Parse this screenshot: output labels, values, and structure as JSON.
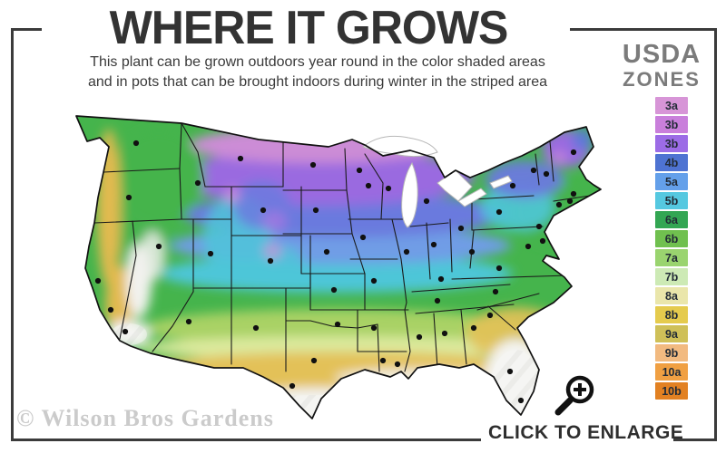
{
  "title": "WHERE IT GROWS",
  "subtitle": {
    "line1": "This plant can be grown outdoors year round in the color shaded areas",
    "line2": "and in pots that can be brought indoors during winter in the striped area"
  },
  "legend": {
    "heading_line1": "USDA",
    "heading_line2": "ZONES",
    "zones": [
      {
        "label": "3a",
        "color": "#d795d7"
      },
      {
        "label": "3b",
        "color": "#c97fdb"
      },
      {
        "label": "3b",
        "color": "#9c6ce6"
      },
      {
        "label": "4b",
        "color": "#4e73d2"
      },
      {
        "label": "5a",
        "color": "#64a0ea"
      },
      {
        "label": "5b",
        "color": "#55c8e0"
      },
      {
        "label": "6a",
        "color": "#33a653"
      },
      {
        "label": "6b",
        "color": "#70c04f"
      },
      {
        "label": "7a",
        "color": "#9ad46f"
      },
      {
        "label": "7b",
        "color": "#cdeab5"
      },
      {
        "label": "8a",
        "color": "#eae6ab"
      },
      {
        "label": "8b",
        "color": "#e5cb4d"
      },
      {
        "label": "9a",
        "color": "#cfc058"
      },
      {
        "label": "9b",
        "color": "#f2ba80"
      },
      {
        "label": "10a",
        "color": "#f0a043"
      },
      {
        "label": "10b",
        "color": "#e28122"
      }
    ]
  },
  "watermark": "© Wilson Bros Gardens",
  "enlarge_label": "CLICK TO ENLARGE",
  "map": {
    "marker_color": "#111111",
    "markers": [
      [
        100,
        48
      ],
      [
        92,
        108
      ],
      [
        58,
        200
      ],
      [
        72,
        232
      ],
      [
        88,
        256
      ],
      [
        125,
        162
      ],
      [
        168,
        92
      ],
      [
        215,
        65
      ],
      [
        240,
        122
      ],
      [
        182,
        170
      ],
      [
        248,
        178
      ],
      [
        158,
        245
      ],
      [
        232,
        252
      ],
      [
        295,
        72
      ],
      [
        298,
        122
      ],
      [
        310,
        168
      ],
      [
        318,
        210
      ],
      [
        322,
        248
      ],
      [
        296,
        288
      ],
      [
        272,
        316
      ],
      [
        346,
        78
      ],
      [
        356,
        95
      ],
      [
        350,
        152
      ],
      [
        362,
        200
      ],
      [
        362,
        252
      ],
      [
        372,
        288
      ],
      [
        388,
        292
      ],
      [
        378,
        98
      ],
      [
        398,
        168
      ],
      [
        412,
        262
      ],
      [
        420,
        112
      ],
      [
        428,
        160
      ],
      [
        436,
        198
      ],
      [
        432,
        222
      ],
      [
        440,
        258
      ],
      [
        458,
        142
      ],
      [
        472,
        252
      ],
      [
        512,
        300
      ],
      [
        524,
        332
      ],
      [
        490,
        238
      ],
      [
        496,
        212
      ],
      [
        500,
        186
      ],
      [
        470,
        168
      ],
      [
        500,
        124
      ],
      [
        515,
        95
      ],
      [
        544,
        140
      ],
      [
        548,
        156
      ],
      [
        532,
        162
      ],
      [
        582,
        58
      ],
      [
        538,
        78
      ],
      [
        552,
        82
      ],
      [
        582,
        104
      ],
      [
        566,
        116
      ],
      [
        578,
        112
      ]
    ]
  }
}
